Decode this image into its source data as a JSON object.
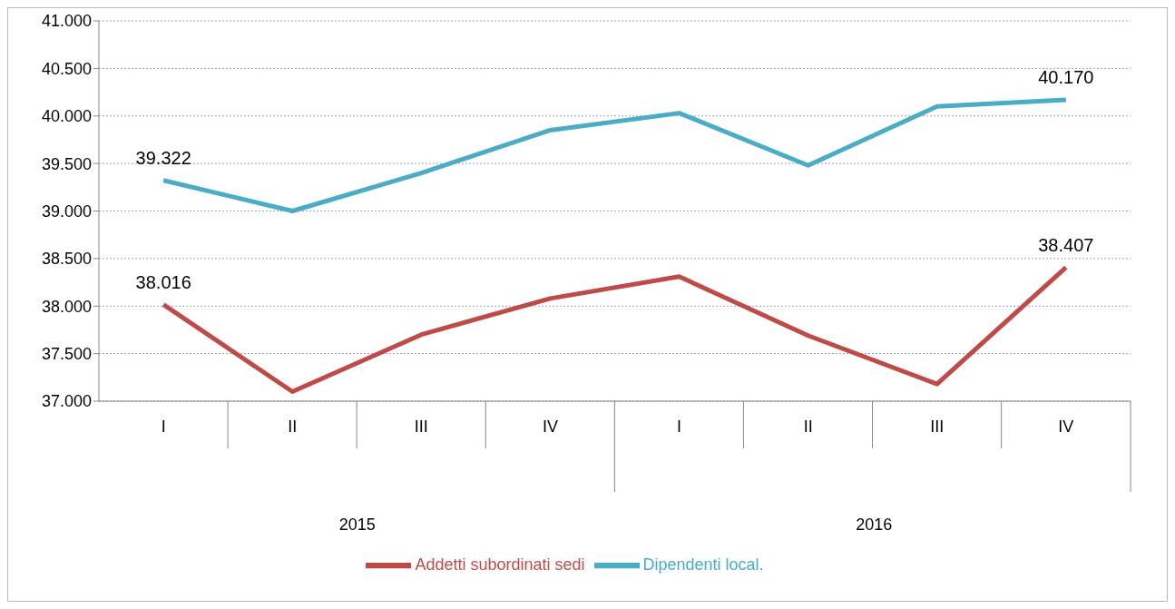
{
  "chart_data": {
    "type": "line",
    "categories": [
      "I",
      "II",
      "III",
      "IV",
      "I",
      "II",
      "III",
      "IV"
    ],
    "series": [
      {
        "name": "Addetti subordinati sedi",
        "color": "#be4b48",
        "values": [
          38016,
          37100,
          37700,
          38080,
          38310,
          37690,
          37180,
          38407
        ],
        "value_labels": [
          "38.016",
          null,
          null,
          null,
          null,
          null,
          null,
          "38.407"
        ]
      },
      {
        "name": "Dipendenti local.",
        "color": "#4bacc6",
        "values": [
          39322,
          39000,
          39400,
          39850,
          40030,
          39480,
          40100,
          40170
        ],
        "value_labels": [
          "39.322",
          null,
          null,
          null,
          null,
          null,
          null,
          "40.170"
        ]
      }
    ],
    "ylim": [
      37000,
      41000
    ],
    "yticks": [
      {
        "value": 37000,
        "label": "37.000"
      },
      {
        "value": 37500,
        "label": "37.500"
      },
      {
        "value": 38000,
        "label": "38.000"
      },
      {
        "value": 38500,
        "label": "38.500"
      },
      {
        "value": 39000,
        "label": "39.000"
      },
      {
        "value": 39500,
        "label": "39.500"
      },
      {
        "value": 40000,
        "label": "40.000"
      },
      {
        "value": 40500,
        "label": "40.500"
      },
      {
        "value": 41000,
        "label": "41.000"
      }
    ],
    "grid": "y",
    "legend": "bottom",
    "marker": "none",
    "line_style": "solid",
    "annotations": [
      "2015",
      "2016"
    ]
  }
}
